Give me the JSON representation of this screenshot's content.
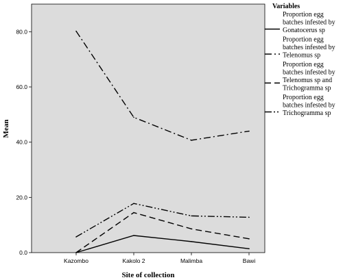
{
  "chart_data": {
    "type": "line",
    "xlabel": "Site of collection",
    "ylabel": "Mean",
    "categories": [
      "Kazombo",
      "Kakolo 2",
      "Malimba",
      "Bawi"
    ],
    "ylim": [
      0,
      90
    ],
    "yticks": [
      0,
      20,
      40,
      60,
      80
    ],
    "ytick_labels": [
      "0.0",
      "20.0",
      "40.0",
      "60.0",
      "80.0"
    ],
    "grid": false,
    "legend_placement": "right",
    "legend_title": "Variables",
    "plot_background": "#dcdcdc",
    "series": [
      {
        "name": "Proportion egg batches infested by Gonatocerus sp",
        "legend_lines": [
          "Proportion egg",
          "batches infested by",
          "Gonatocerus sp"
        ],
        "style": "solid",
        "values": [
          0,
          6.2,
          4,
          1.4
        ]
      },
      {
        "name": "Proportion egg batches infested by Telenomus sp",
        "legend_lines": [
          "Proportion egg",
          "batches infested by",
          "Telenomus sp"
        ],
        "style": "dash-dot",
        "values": [
          80.2,
          49,
          40.7,
          44
        ]
      },
      {
        "name": "Proportion egg batches infested by Telenomus sp and Trichogramma sp",
        "legend_lines": [
          "Proportion egg",
          "batches infested by",
          "Telenomus sp and",
          "Trichogramma sp"
        ],
        "style": "dashed",
        "values": [
          0,
          14.5,
          8.6,
          5
        ]
      },
      {
        "name": "Proportion egg batches infested by Trichogramma sp",
        "legend_lines": [
          "Proportion egg",
          "batches infested by",
          "Trichogramma sp"
        ],
        "style": "dash-dot-dot",
        "values": [
          5.7,
          17.8,
          13.3,
          12.8
        ]
      }
    ]
  }
}
